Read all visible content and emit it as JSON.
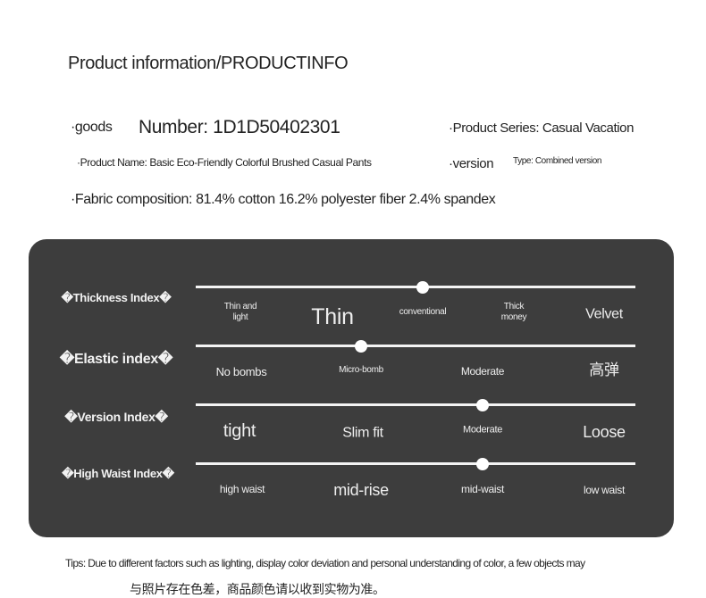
{
  "title": "Product information/PRODUCTINFO",
  "info": {
    "goods_label": "·goods",
    "number": "Number: 1D1D50402301",
    "series": "·Product Series: Casual Vacation",
    "name": "·Product Name: Basic Eco-Friendly Colorful Brushed Casual Pants",
    "version_label": "·version",
    "version_type": "Type: Combined version",
    "fabric": "·Fabric composition: 81.4% cotton 16.2% polyester fiber 2.4% spandex"
  },
  "indices": [
    {
      "label": "�Thickness Index�",
      "options": [
        "Thin and light",
        "Thin",
        "conventional",
        "Thick money",
        "Velvet"
      ],
      "selected": 2
    },
    {
      "label": "�Elastic index�",
      "options": [
        "No bombs",
        "Micro-bomb",
        "Moderate",
        "高弹"
      ],
      "selected": 1
    },
    {
      "label": "�Version Index�",
      "options": [
        "tight",
        "Slim fit",
        "Moderate",
        "Loose"
      ],
      "selected": 2
    },
    {
      "label": "�High Waist Index�",
      "options": [
        "high waist",
        "mid-rise",
        "mid-waist",
        "low waist"
      ],
      "selected": 2
    }
  ],
  "tips": {
    "line1": "Tips: Due to different factors such as lighting, display color deviation and personal understanding of color, a few objects may",
    "line2": "与照片存在色差，商品颜色请以收到实物为准。"
  },
  "colors": {
    "panel": "#3d3d3d",
    "text": "#222222"
  }
}
